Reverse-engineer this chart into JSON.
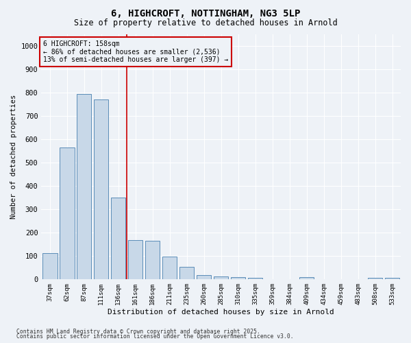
{
  "title1": "6, HIGHCROFT, NOTTINGHAM, NG3 5LP",
  "title2": "Size of property relative to detached houses in Arnold",
  "xlabel": "Distribution of detached houses by size in Arnold",
  "ylabel": "Number of detached properties",
  "categories": [
    "37sqm",
    "62sqm",
    "87sqm",
    "111sqm",
    "136sqm",
    "161sqm",
    "186sqm",
    "211sqm",
    "235sqm",
    "260sqm",
    "285sqm",
    "310sqm",
    "335sqm",
    "359sqm",
    "384sqm",
    "409sqm",
    "434sqm",
    "459sqm",
    "483sqm",
    "508sqm",
    "533sqm"
  ],
  "values": [
    112,
    565,
    793,
    770,
    350,
    168,
    165,
    97,
    55,
    20,
    13,
    10,
    8,
    0,
    0,
    10,
    0,
    0,
    0,
    8,
    8
  ],
  "bar_color": "#c8d8e8",
  "bar_edge_color": "#5b8db8",
  "vline_x": 4.5,
  "vline_color": "#cc0000",
  "annotation_title": "6 HIGHCROFT: 158sqm",
  "annotation_line1": "← 86% of detached houses are smaller (2,536)",
  "annotation_line2": "13% of semi-detached houses are larger (397) →",
  "annotation_box_color": "#cc0000",
  "ylim": [
    0,
    1050
  ],
  "yticks": [
    0,
    100,
    200,
    300,
    400,
    500,
    600,
    700,
    800,
    900,
    1000
  ],
  "bg_color": "#eef2f7",
  "grid_color": "#ffffff",
  "footer1": "Contains HM Land Registry data © Crown copyright and database right 2025.",
  "footer2": "Contains public sector information licensed under the Open Government Licence v3.0.",
  "figsize": [
    6.0,
    5.0
  ],
  "dpi": 100
}
